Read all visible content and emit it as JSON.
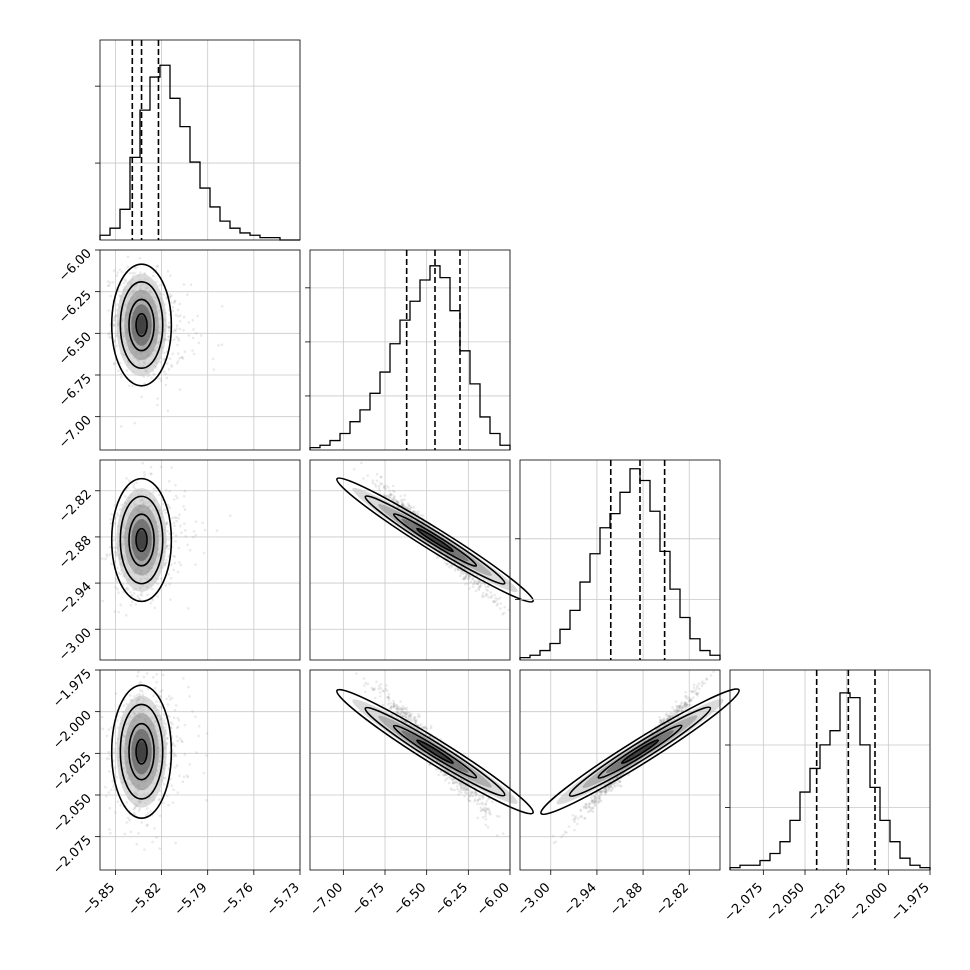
{
  "chart_data": {
    "type": "corner",
    "grid": true,
    "parameters": [
      {
        "range": [
          -5.86,
          -5.73
        ],
        "ticks": [
          -5.85,
          -5.82,
          -5.79,
          -5.76,
          -5.73
        ],
        "tick_labels": [
          "−5.85",
          "−5.82",
          "−5.79",
          "−5.76",
          "−5.73"
        ],
        "quantiles": [
          -5.839,
          -5.833,
          -5.822
        ],
        "hist": [
          0.02,
          0.05,
          0.13,
          0.35,
          0.55,
          0.69,
          0.74,
          0.6,
          0.48,
          0.33,
          0.22,
          0.14,
          0.08,
          0.05,
          0.03,
          0.02,
          0.01,
          0.01,
          0.0,
          0.0
        ]
      },
      {
        "range": [
          -7.2,
          -6.0
        ],
        "ticks": [
          -7.0,
          -6.75,
          -6.5,
          -6.25,
          -6.0
        ],
        "tick_labels": [
          "−7.00",
          "−6.75",
          "−6.50",
          "−6.25",
          "−6.00"
        ],
        "quantiles": [
          -6.62,
          -6.45,
          -6.3
        ],
        "hist": [
          0.01,
          0.02,
          0.04,
          0.07,
          0.12,
          0.17,
          0.24,
          0.33,
          0.45,
          0.55,
          0.63,
          0.72,
          0.78,
          0.73,
          0.59,
          0.42,
          0.28,
          0.14,
          0.07,
          0.02
        ]
      },
      {
        "range": [
          -3.04,
          -2.78
        ],
        "ticks": [
          -3.0,
          -2.94,
          -2.88,
          -2.82
        ],
        "tick_labels": [
          "−3.00",
          "−2.94",
          "−2.88",
          "−2.82"
        ],
        "quantiles": [
          -2.922,
          -2.884,
          -2.852
        ],
        "hist": [
          0.01,
          0.02,
          0.04,
          0.07,
          0.13,
          0.21,
          0.33,
          0.45,
          0.56,
          0.62,
          0.71,
          0.81,
          0.76,
          0.63,
          0.46,
          0.3,
          0.18,
          0.09,
          0.04,
          0.02
        ]
      },
      {
        "range": [
          -2.095,
          -1.975
        ],
        "ticks": [
          -2.075,
          -2.05,
          -2.025,
          -2.0,
          -1.975
        ],
        "tick_labels": [
          "−2.075",
          "−2.050",
          "−2.025",
          "−2.000",
          "−1.975"
        ],
        "quantiles": [
          -2.043,
          -2.024,
          -2.008
        ],
        "hist": [
          0.01,
          0.02,
          0.02,
          0.04,
          0.07,
          0.12,
          0.21,
          0.33,
          0.43,
          0.53,
          0.59,
          0.75,
          0.73,
          0.53,
          0.35,
          0.21,
          0.12,
          0.05,
          0.02,
          0.01
        ]
      }
    ],
    "diag_yticks": [
      [
        100,
        200
      ],
      [
        100,
        200,
        300
      ],
      [
        100,
        200
      ],
      [
        100,
        200
      ]
    ],
    "diag_ymax": [
      260,
      370,
      330,
      320
    ],
    "correlations": [
      [
        1.0,
        -0.2,
        0.15,
        0.15
      ],
      [
        -0.2,
        1.0,
        -0.98,
        -0.97
      ],
      [
        0.15,
        -0.98,
        1.0,
        0.99
      ],
      [
        0.15,
        -0.97,
        0.99,
        1.0
      ]
    ]
  }
}
